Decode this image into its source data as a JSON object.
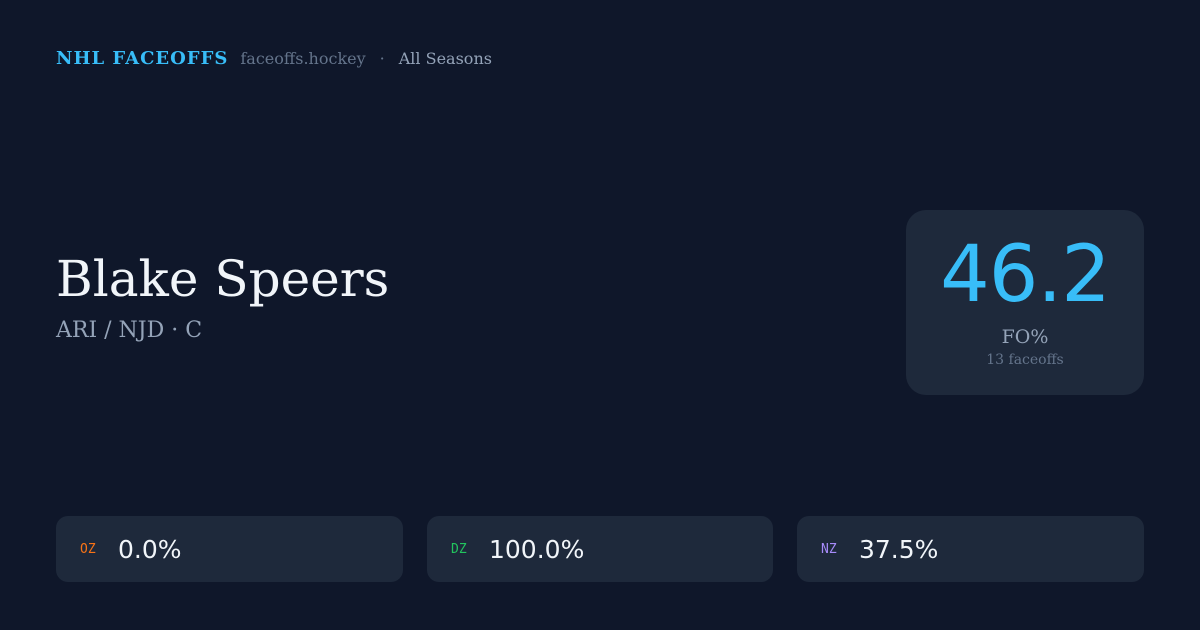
{
  "header": {
    "brand": "NHL FACEOFFS",
    "site": "faceoffs.hockey",
    "separator": "·",
    "season": "All Seasons"
  },
  "player": {
    "name": "Blake Speers",
    "meta": "ARI / NJD · C"
  },
  "stat": {
    "value": "46.2",
    "label": "FO%",
    "count": "13 faceoffs",
    "color": "#38bdf8"
  },
  "zones": [
    {
      "label": "OZ",
      "value": "0.0%",
      "color": "#f97316"
    },
    {
      "label": "DZ",
      "value": "100.0%",
      "color": "#22c55e"
    },
    {
      "label": "NZ",
      "value": "37.5%",
      "color": "#a78bfa"
    }
  ]
}
